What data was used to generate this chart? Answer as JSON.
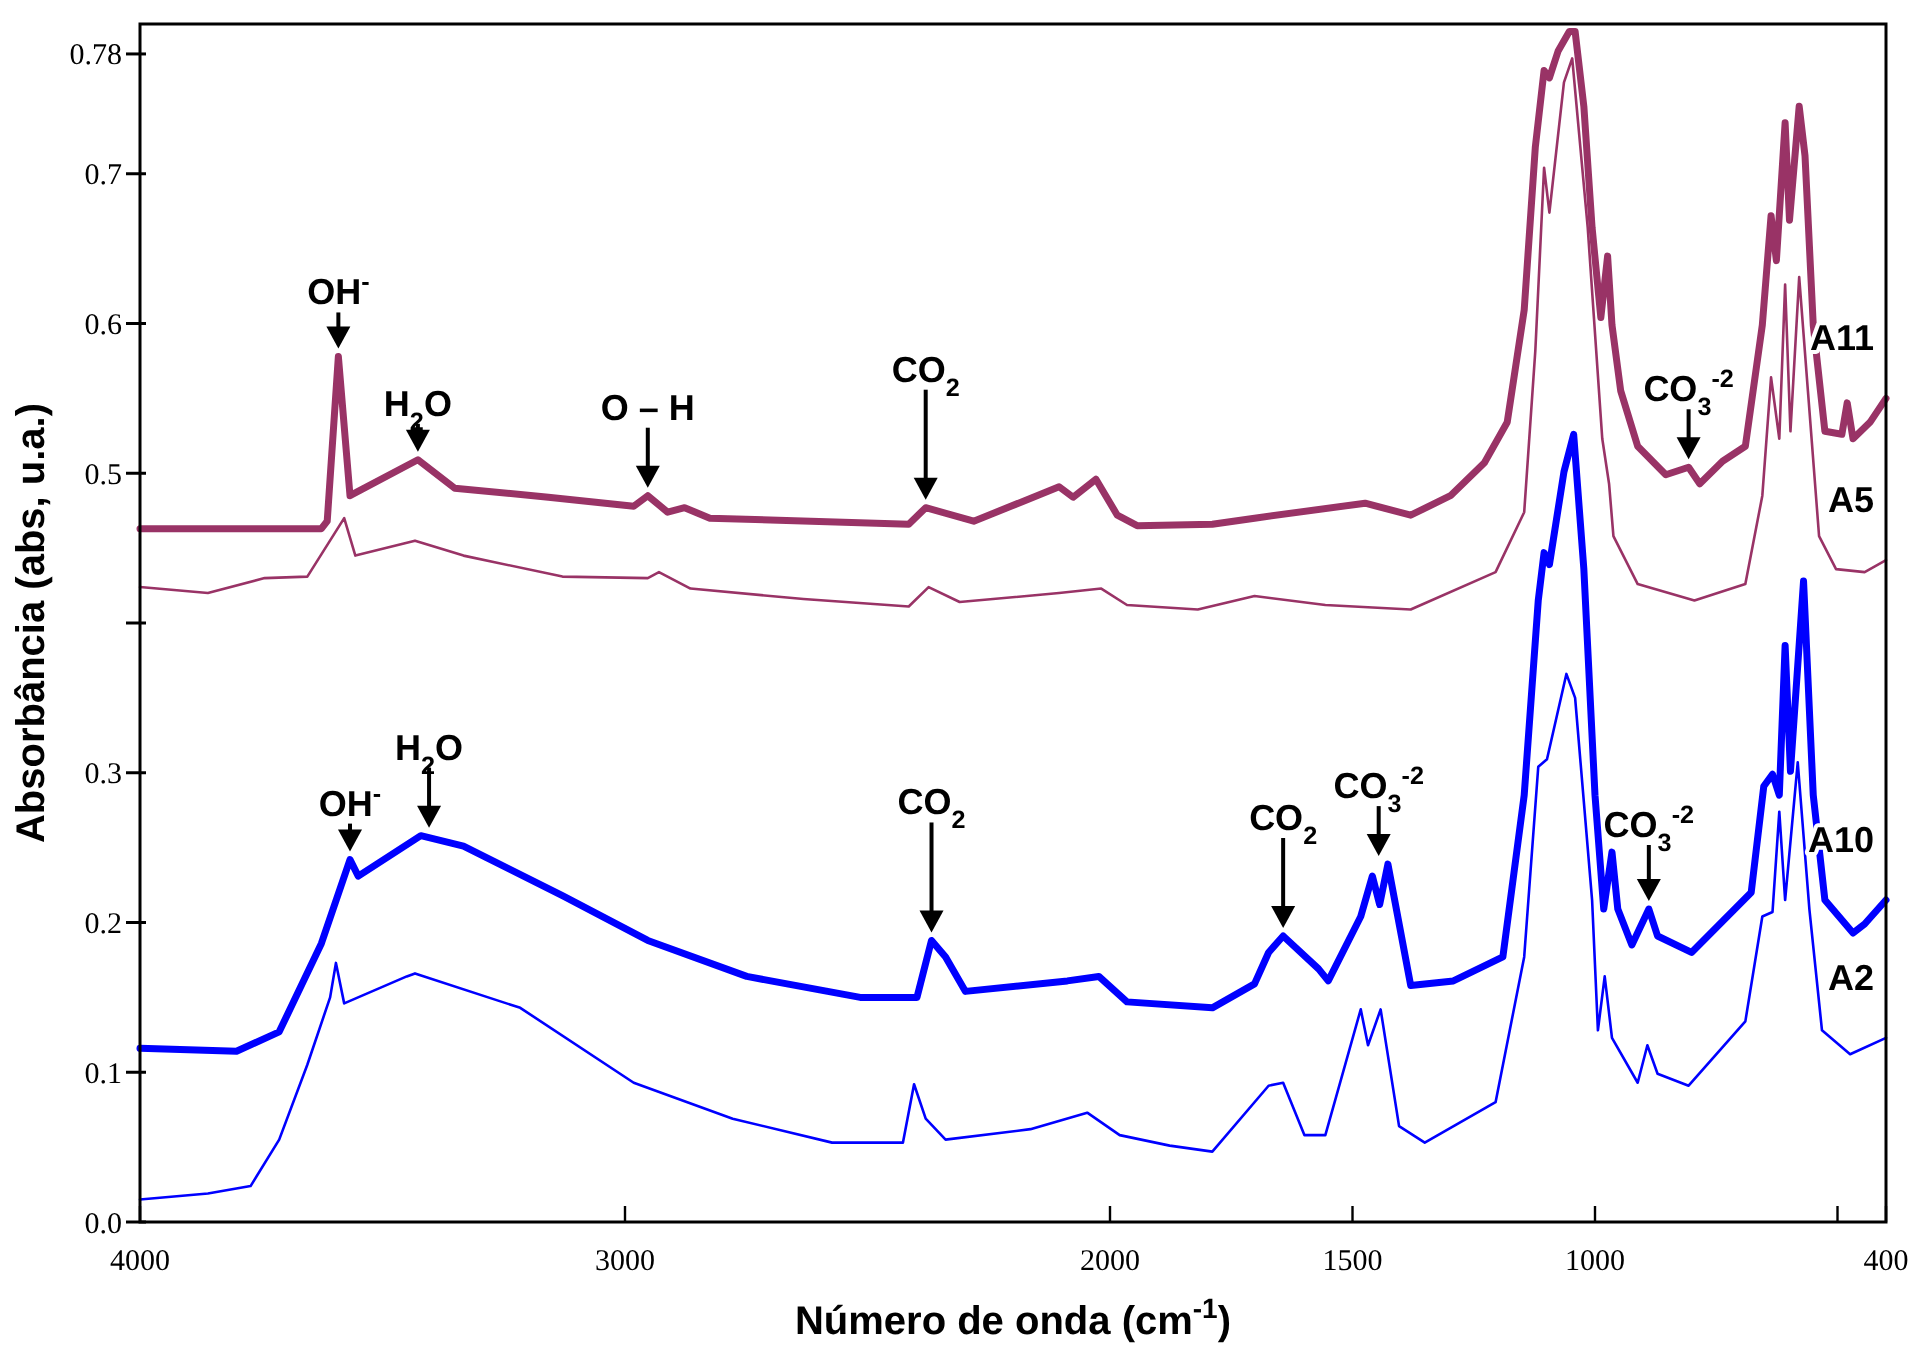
{
  "chart_data": {
    "type": "line",
    "xlabel": "Número de onda (cm$^{-1}$)",
    "ylabel": "Absorbância (abs, u.a.)",
    "legend": false,
    "xlim": [
      4000,
      400
    ],
    "xticks": [
      4000,
      3000,
      2000,
      1500,
      1000,
      {
        "value": 500,
        "label": null
      },
      400
    ],
    "ylim": [
      0,
      0.8
    ],
    "yticks": [
      {
        "value": 0,
        "label": "0.0"
      },
      0.1,
      0.2,
      0.3,
      {
        "value": 0.4,
        "label": null
      },
      0.5,
      0.6,
      0.7,
      0.78
    ],
    "series": [
      {
        "name": "A11",
        "color": "#993366",
        "x": [
          4000,
          3626,
          3614,
          3591,
          3567,
          3427,
          3351,
          3158,
          2982,
          2953,
          2912,
          2877,
          2825,
          2415,
          2380,
          2281,
          2181,
          2105,
          2076,
          2029,
          1985,
          1944,
          1789,
          1702,
          1474,
          1380,
          1298,
          1228,
          1181,
          1146,
          1123,
          1105,
          1094,
          1076,
          1053,
          1041,
          1023,
          1006,
          988,
          974,
          965,
          947,
          912,
          854,
          807,
          784,
          737,
          690,
          655,
          637,
          626,
          608,
          599,
          579,
          567,
          550,
          526,
          491,
          480,
          468,
          433,
          400
        ],
        "values": [
          0.463,
          0.463,
          0.468,
          0.578,
          0.485,
          0.509,
          0.49,
          0.484,
          0.478,
          0.485,
          0.474,
          0.477,
          0.47,
          0.466,
          0.477,
          0.468,
          0.481,
          0.491,
          0.484,
          0.496,
          0.472,
          0.465,
          0.466,
          0.47,
          0.48,
          0.472,
          0.485,
          0.507,
          0.534,
          0.609,
          0.718,
          0.769,
          0.764,
          0.782,
          0.795,
          0.795,
          0.745,
          0.664,
          0.604,
          0.645,
          0.599,
          0.555,
          0.518,
          0.499,
          0.504,
          0.493,
          0.508,
          0.518,
          0.599,
          0.672,
          0.642,
          0.734,
          0.669,
          0.745,
          0.712,
          0.599,
          0.528,
          0.526,
          0.547,
          0.523,
          0.534,
          0.55
        ]
      },
      {
        "name": "A5",
        "color": "#993366",
        "x": [
          4000,
          3860,
          3743,
          3655,
          3579,
          3556,
          3433,
          3333,
          3129,
          2953,
          2930,
          2865,
          2632,
          2415,
          2374,
          2310,
          2105,
          2018,
          1965,
          1819,
          1702,
          1556,
          1380,
          1205,
          1146,
          1123,
          1105,
          1094,
          1064,
          1047,
          1015,
          985,
          971,
          962,
          912,
          795,
          690,
          655,
          637,
          620,
          608,
          597,
          579,
          561,
          538,
          503,
          444,
          400
        ],
        "values": [
          0.424,
          0.42,
          0.43,
          0.431,
          0.47,
          0.445,
          0.455,
          0.445,
          0.431,
          0.43,
          0.434,
          0.423,
          0.416,
          0.411,
          0.424,
          0.414,
          0.42,
          0.423,
          0.412,
          0.409,
          0.418,
          0.412,
          0.409,
          0.434,
          0.474,
          0.582,
          0.704,
          0.674,
          0.761,
          0.777,
          0.664,
          0.523,
          0.493,
          0.458,
          0.426,
          0.415,
          0.426,
          0.485,
          0.564,
          0.523,
          0.626,
          0.528,
          0.631,
          0.555,
          0.458,
          0.436,
          0.434,
          0.442
        ]
      },
      {
        "name": "A10",
        "color": "#0000ff",
        "x": [
          4000,
          3801,
          3713,
          3626,
          3567,
          3550,
          3421,
          3333,
          3129,
          2953,
          2749,
          2515,
          2398,
          2368,
          2339,
          2298,
          2088,
          2023,
          1965,
          1789,
          1702,
          1673,
          1643,
          1570,
          1550,
          1483,
          1459,
          1444,
          1427,
          1380,
          1292,
          1190,
          1146,
          1117,
          1105,
          1094,
          1064,
          1044,
          1023,
          1000,
          982,
          965,
          953,
          924,
          889,
          871,
          801,
          678,
          652,
          634,
          620,
          608,
          597,
          570,
          550,
          526,
          468,
          444,
          400
        ],
        "values": [
          0.116,
          0.114,
          0.127,
          0.186,
          0.242,
          0.231,
          0.258,
          0.251,
          0.218,
          0.188,
          0.164,
          0.15,
          0.15,
          0.188,
          0.177,
          0.154,
          0.161,
          0.164,
          0.147,
          0.143,
          0.159,
          0.18,
          0.191,
          0.169,
          0.161,
          0.204,
          0.231,
          0.212,
          0.239,
          0.158,
          0.161,
          0.177,
          0.285,
          0.415,
          0.447,
          0.439,
          0.501,
          0.526,
          0.436,
          0.285,
          0.209,
          0.247,
          0.209,
          0.185,
          0.209,
          0.191,
          0.18,
          0.22,
          0.291,
          0.299,
          0.285,
          0.385,
          0.301,
          0.428,
          0.285,
          0.215,
          0.193,
          0.199,
          0.215
        ]
      },
      {
        "name": "A2",
        "color": "#0000ff",
        "x": [
          4000,
          3860,
          3772,
          3713,
          3655,
          3608,
          3596,
          3579,
          3450,
          3433,
          3216,
          2982,
          2778,
          2573,
          2427,
          2404,
          2380,
          2339,
          2164,
          2047,
          1980,
          1877,
          1789,
          1673,
          1643,
          1599,
          1556,
          1483,
          1468,
          1442,
          1404,
          1351,
          1205,
          1146,
          1117,
          1099,
          1059,
          1041,
          1006,
          994,
          980,
          965,
          912,
          892,
          871,
          807,
          690,
          655,
          634,
          620,
          608,
          582,
          558,
          532,
          474,
          400
        ],
        "values": [
          0.015,
          0.019,
          0.024,
          0.055,
          0.105,
          0.15,
          0.173,
          0.146,
          0.164,
          0.166,
          0.143,
          0.093,
          0.069,
          0.053,
          0.053,
          0.092,
          0.069,
          0.055,
          0.062,
          0.073,
          0.058,
          0.051,
          0.047,
          0.091,
          0.093,
          0.058,
          0.058,
          0.142,
          0.118,
          0.142,
          0.064,
          0.053,
          0.08,
          0.177,
          0.304,
          0.309,
          0.366,
          0.35,
          0.215,
          0.128,
          0.164,
          0.123,
          0.093,
          0.118,
          0.099,
          0.091,
          0.134,
          0.204,
          0.207,
          0.274,
          0.215,
          0.307,
          0.209,
          0.128,
          0.112,
          0.123
        ]
      }
    ],
    "annotations": [
      {
        "text": "OH$^{-}$",
        "x": 3591,
        "y": 0.578
      },
      {
        "text": "H$_{2}$O",
        "x": 3427,
        "y": 0.509
      },
      {
        "text": "O – H",
        "x": 2953,
        "y": 0.485
      },
      {
        "text": "CO$_{2}$",
        "x": 2380,
        "y": 0.477
      },
      {
        "text": "CO$_{3}$$^{-2}$",
        "x": 807,
        "y": 0.504
      },
      {
        "text": "OH$^{-}$",
        "x": 3567,
        "y": 0.242
      },
      {
        "text": "H$_{2}$O",
        "x": 3404,
        "y": 0.258
      },
      {
        "text": "CO$_{2}$",
        "x": 2368,
        "y": 0.188
      },
      {
        "text": "CO$_{2}$",
        "x": 1643,
        "y": 0.191
      },
      {
        "text": "CO$_{3}$$^{-2}$",
        "x": 1446,
        "y": 0.239
      },
      {
        "text": "CO$_{3}$$^{-2}$",
        "x": 889,
        "y": 0.209
      }
    ]
  }
}
